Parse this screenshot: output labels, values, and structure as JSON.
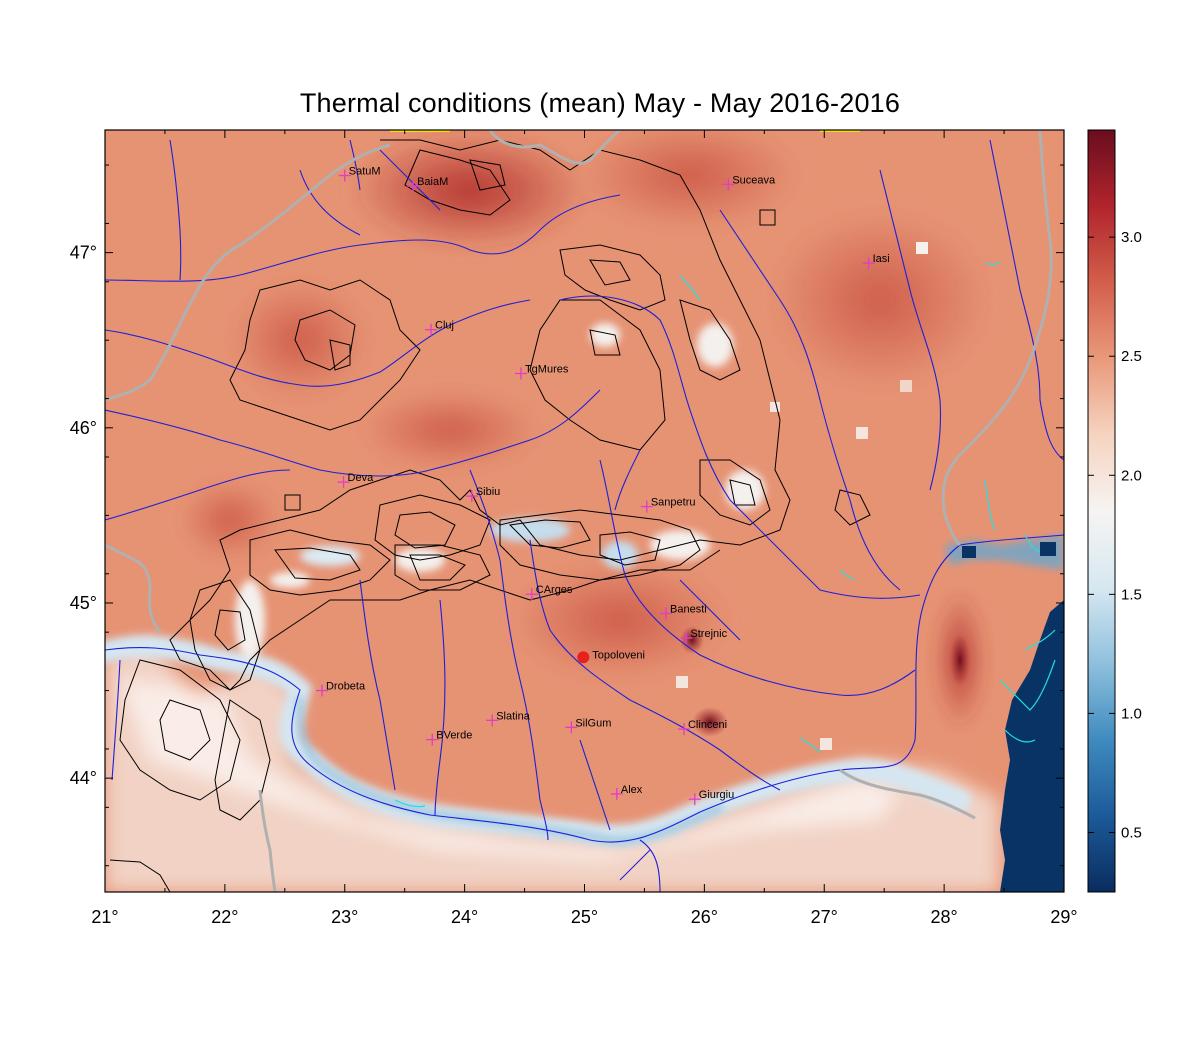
{
  "title": "Thermal conditions (mean) May - May  2016-2016",
  "map": {
    "lon_range": [
      21,
      29
    ],
    "lat_range": [
      43.35,
      47.7
    ],
    "x_ticks": [
      {
        "value": 21,
        "label": "21°"
      },
      {
        "value": 22,
        "label": "22°"
      },
      {
        "value": 23,
        "label": "23°"
      },
      {
        "value": 24,
        "label": "24°"
      },
      {
        "value": 25,
        "label": "25°"
      },
      {
        "value": 26,
        "label": "26°"
      },
      {
        "value": 27,
        "label": "27°"
      },
      {
        "value": 28,
        "label": "28°"
      },
      {
        "value": 29,
        "label": "29°"
      }
    ],
    "y_ticks": [
      {
        "value": 44,
        "label": "44°"
      },
      {
        "value": 45,
        "label": "45°"
      },
      {
        "value": 46,
        "label": "46°"
      },
      {
        "value": 47,
        "label": "47°"
      }
    ],
    "colors": {
      "land_mid": "#e69374",
      "land_hot": "#b5322e",
      "cool": "#f3ddd2",
      "danube": "#d5e6f1",
      "sea": "#093365",
      "rivers": "#1f1fd8",
      "borders": "#b0b0b0",
      "contours": "#000000",
      "markers": "#e23cc8",
      "highlight": "#e8211b",
      "lakes": "#20e0e0"
    }
  },
  "stations": [
    {
      "name": "SatuM",
      "lon": 23.0,
      "lat": 47.44
    },
    {
      "name": "BaiaM",
      "lon": 23.57,
      "lat": 47.38
    },
    {
      "name": "Suceava",
      "lon": 26.2,
      "lat": 47.39
    },
    {
      "name": "Iasi",
      "lon": 27.37,
      "lat": 46.94
    },
    {
      "name": "Cluj",
      "lon": 23.72,
      "lat": 46.56
    },
    {
      "name": "TgMures",
      "lon": 24.47,
      "lat": 46.31
    },
    {
      "name": "Deva",
      "lon": 22.99,
      "lat": 45.69
    },
    {
      "name": "Sibiu",
      "lon": 24.06,
      "lat": 45.61
    },
    {
      "name": "Sanpetru",
      "lon": 25.52,
      "lat": 45.55
    },
    {
      "name": "CArges",
      "lon": 24.56,
      "lat": 45.05
    },
    {
      "name": "Banesti",
      "lon": 25.68,
      "lat": 44.94
    },
    {
      "name": "Strejnic",
      "lon": 25.85,
      "lat": 44.8
    },
    {
      "name": "Drobeta",
      "lon": 22.81,
      "lat": 44.5
    },
    {
      "name": "Slatina",
      "lon": 24.23,
      "lat": 44.33
    },
    {
      "name": "SilGum",
      "lon": 24.89,
      "lat": 44.29
    },
    {
      "name": "Clinceni",
      "lon": 25.83,
      "lat": 44.28
    },
    {
      "name": "BVerde",
      "lon": 23.73,
      "lat": 44.22
    },
    {
      "name": "Alex",
      "lon": 25.27,
      "lat": 43.91
    },
    {
      "name": "Giurgiu",
      "lon": 25.92,
      "lat": 43.88
    }
  ],
  "highlight_station": {
    "name": "Topoloveni",
    "lon": 24.99,
    "lat": 44.69
  },
  "colorbar": {
    "range": [
      0.25,
      3.45
    ],
    "ticks": [
      {
        "value": 0.5,
        "label": "0.5"
      },
      {
        "value": 1.0,
        "label": "1.0"
      },
      {
        "value": 1.5,
        "label": "1.5"
      },
      {
        "value": 2.0,
        "label": "2.0"
      },
      {
        "value": 2.5,
        "label": "2.5"
      },
      {
        "value": 3.0,
        "label": "3.0"
      }
    ],
    "stops": [
      "#0a2c5f",
      "#1c5a99",
      "#3f8bbf",
      "#8fc0dd",
      "#d7e8f1",
      "#f6f4f2",
      "#f6d3c0",
      "#e9997a",
      "#d35f4b",
      "#b1242d",
      "#6a0d1e"
    ]
  }
}
